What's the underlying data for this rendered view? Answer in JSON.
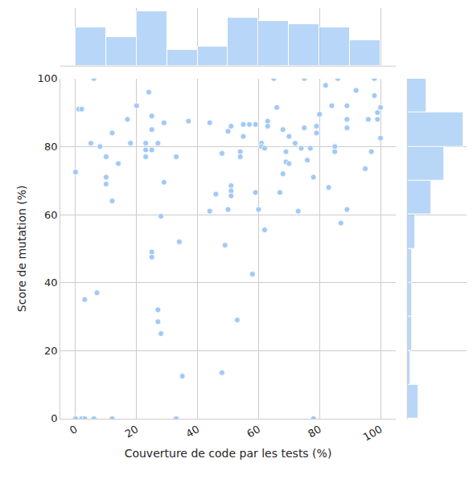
{
  "chart_data": {
    "type": "scatter",
    "xlabel": "Couverture de code par les tests (%)",
    "ylabel": "Score de mutation (%)",
    "x": [
      0,
      0,
      1,
      2,
      2,
      3,
      3,
      5,
      6,
      6,
      7,
      8,
      10,
      10,
      10,
      12,
      12,
      12,
      14,
      17,
      18,
      20,
      23,
      23,
      23,
      24,
      25,
      25,
      25,
      25,
      25,
      27,
      27,
      27,
      28,
      28,
      29,
      29,
      33,
      34,
      33,
      35,
      37,
      44,
      44,
      46,
      48,
      48,
      49,
      50,
      50,
      51,
      51,
      51,
      51,
      53,
      54,
      54,
      55,
      55,
      57,
      58,
      59,
      59,
      60,
      61,
      61,
      62,
      62,
      63,
      63,
      65,
      66,
      67,
      68,
      68,
      69,
      69,
      70,
      70,
      72,
      73,
      74,
      75,
      75,
      76,
      77,
      78,
      78,
      79,
      79,
      80,
      82,
      83,
      84,
      85,
      85,
      86,
      87,
      89,
      89,
      89,
      89,
      92,
      95,
      96,
      97,
      98,
      98,
      99,
      99,
      100,
      100
    ],
    "values": [
      0,
      72.5,
      91,
      91,
      0,
      35,
      0,
      81,
      100,
      0,
      37,
      80,
      77,
      71,
      69,
      84,
      64,
      0,
      75,
      88,
      81,
      92,
      81,
      79,
      77,
      96,
      89,
      85,
      79,
      49,
      47.5,
      81,
      32,
      28.5,
      25,
      59.5,
      69.5,
      87,
      77,
      52,
      0,
      12.5,
      87.5,
      87,
      61,
      66,
      13.5,
      78,
      51,
      84.5,
      61.5,
      68.5,
      67,
      65.5,
      86,
      29,
      78.5,
      77,
      83,
      86.5,
      86.5,
      42.5,
      66.5,
      86.5,
      61.5,
      81,
      80,
      55.5,
      79.5,
      87.5,
      86,
      100,
      91.5,
      66.5,
      72,
      85,
      78.5,
      75.5,
      75,
      83,
      81,
      61,
      79.5,
      100,
      85.5,
      76,
      79.5,
      0,
      71,
      84,
      86,
      89.5,
      98,
      68,
      92,
      80,
      78.5,
      100,
      57.5,
      92,
      88,
      85.5,
      61.5,
      96.5,
      73.5,
      88,
      78.5,
      95,
      100,
      90,
      88,
      91.5,
      82.5
    ],
    "color": "#a1c9f4",
    "xlim": [
      -5,
      105
    ],
    "ylim": [
      0,
      100
    ],
    "xticks": [
      0,
      20,
      40,
      60,
      80,
      100
    ],
    "yticks": [
      0,
      20,
      40,
      60,
      80,
      100
    ],
    "bins": {
      "x": [
        0,
        10,
        20,
        30,
        40,
        50,
        60,
        70,
        80,
        90,
        100
      ],
      "y": [
        0,
        10,
        20,
        30,
        40,
        50,
        60,
        70,
        80,
        90,
        100
      ]
    },
    "grid": true
  }
}
